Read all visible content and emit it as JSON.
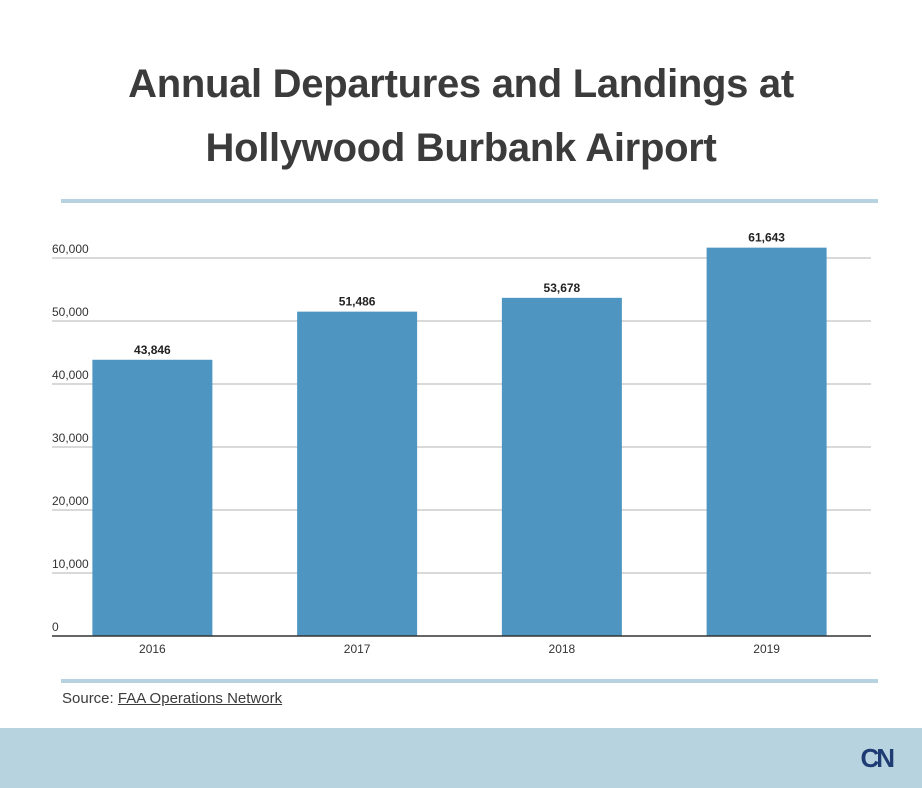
{
  "title_line1": "Annual Departures and Landings at",
  "title_line2": "Hollywood Burbank Airport",
  "source": {
    "prefix": "Source: ",
    "link_text": "FAA Operations Network"
  },
  "logo_text": "CN",
  "colors": {
    "bar": "#4e96c1",
    "rule": "#b7d3e0",
    "footer": "#b7d3e0",
    "logo": "#1f3b73"
  },
  "chart_data": {
    "type": "bar",
    "categories": [
      "2016",
      "2017",
      "2018",
      "2019"
    ],
    "values": [
      43846,
      51486,
      53678,
      61643
    ],
    "data_labels": [
      "43,846",
      "51,486",
      "53,678",
      "61,643"
    ],
    "yticks": [
      0,
      10000,
      20000,
      30000,
      40000,
      50000,
      60000
    ],
    "ytick_labels": [
      "0",
      "10,000",
      "20,000",
      "30,000",
      "40,000",
      "50,000",
      "60,000"
    ],
    "ylim": [
      0,
      60000
    ],
    "grid": true,
    "title": "Annual Departures and Landings at Hollywood Burbank Airport",
    "xlabel": "",
    "ylabel": ""
  }
}
